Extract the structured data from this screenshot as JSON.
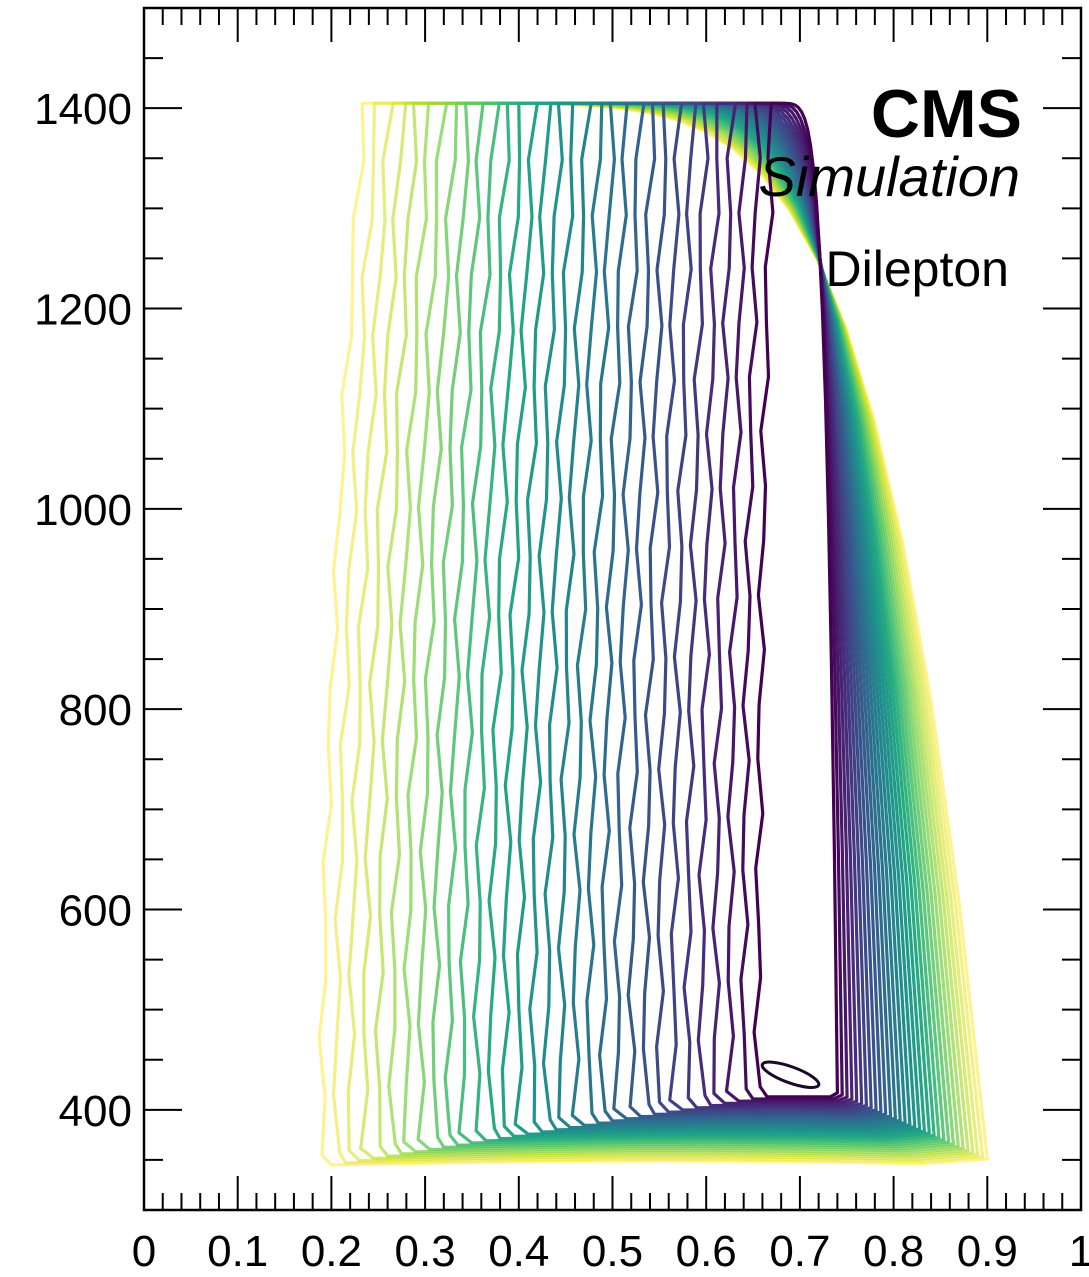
{
  "chart_data": {
    "type": "contour",
    "xlim": [
      0,
      1
    ],
    "ylim": [
      300,
      1500
    ],
    "x_ticks": [
      "0",
      "0.1",
      "0.2",
      "0.3",
      "0.4",
      "0.5",
      "0.6",
      "0.7",
      "0.8",
      "0.9",
      "1"
    ],
    "y_ticks": [
      "400",
      "600",
      "800",
      "1000",
      "1200",
      "1400"
    ],
    "x_tick_values": [
      0,
      0.1,
      0.2,
      0.3,
      0.4,
      0.5,
      0.6,
      0.7,
      0.8,
      0.9,
      1
    ],
    "y_tick_values": [
      400,
      600,
      800,
      1000,
      1200,
      1400
    ],
    "experiment_label": "CMS",
    "sub_label": "Simulation",
    "channel_label": "Dilepton",
    "grid": false,
    "colormap": "viridis (yellow outer contours to dark purple peak)",
    "levels": 32,
    "peak": {
      "x": 0.69,
      "y": 435
    },
    "outer_contour_left_edge_x": 0.19,
    "apex": {
      "x": 0.235,
      "y": 1385
    },
    "baseline_y": 345,
    "right_tip": {
      "x": 0.9,
      "y": 343
    }
  }
}
